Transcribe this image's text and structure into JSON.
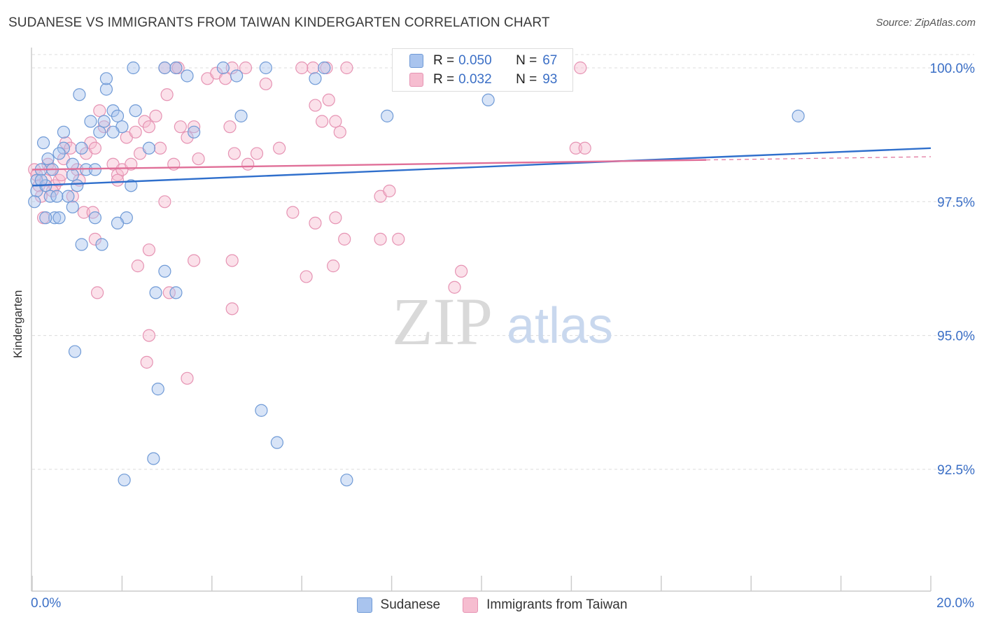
{
  "title": "SUDANESE VS IMMIGRANTS FROM TAIWAN KINDERGARTEN CORRELATION CHART",
  "source": "Source: ZipAtlas.com",
  "watermark": {
    "zip": "ZIP",
    "atlas": "atlas"
  },
  "colors": {
    "blue_fill": "#a9c4ee",
    "blue_stroke": "#6f9ad6",
    "blue_line": "#2f6fcc",
    "pink_fill": "#f6bdd0",
    "pink_stroke": "#e693b3",
    "pink_line": "#e06f98",
    "axis_text": "#3b6fc6",
    "grid": "#dcdcdc"
  },
  "legend_top": {
    "rows": [
      {
        "r_label": "R =",
        "r_value": "0.050",
        "n_label": "N =",
        "n_value": "67"
      },
      {
        "r_label": "R =",
        "r_value": "0.032",
        "n_label": "N =",
        "n_value": "93"
      }
    ]
  },
  "legend_bottom": [
    "Sudanese",
    "Immigrants from Taiwan"
  ],
  "chart_data": {
    "type": "scatter",
    "title": "SUDANESE VS IMMIGRANTS FROM TAIWAN KINDERGARTEN CORRELATION CHART",
    "xlabel": "",
    "ylabel": "Kindergarten",
    "xlim": [
      0.0,
      20.0
    ],
    "ylim": [
      90.0,
      100.5
    ],
    "x_tick_labels": [
      "0.0%",
      "20.0%"
    ],
    "y_ticks": [
      92.5,
      95.0,
      97.5,
      100.0
    ],
    "y_tick_labels": [
      "92.5%",
      "95.0%",
      "97.5%",
      "100.0%"
    ],
    "series": [
      {
        "name": "Sudanese",
        "R": 0.05,
        "N": 67,
        "trend": {
          "x": [
            0.0,
            20.0
          ],
          "y": [
            97.8,
            98.5
          ]
        },
        "points": [
          [
            0.1,
            97.9
          ],
          [
            0.1,
            97.7
          ],
          [
            0.05,
            97.5
          ],
          [
            0.2,
            98.1
          ],
          [
            0.3,
            97.8
          ],
          [
            0.35,
            98.3
          ],
          [
            0.4,
            97.6
          ],
          [
            0.5,
            97.2
          ],
          [
            0.55,
            97.6
          ],
          [
            0.7,
            98.5
          ],
          [
            0.7,
            98.8
          ],
          [
            0.8,
            97.6
          ],
          [
            0.9,
            97.4
          ],
          [
            1.0,
            97.8
          ],
          [
            1.1,
            98.5
          ],
          [
            1.2,
            98.1
          ],
          [
            0.25,
            98.6
          ],
          [
            0.6,
            98.4
          ],
          [
            0.9,
            98.0
          ],
          [
            1.4,
            98.1
          ],
          [
            1.5,
            98.8
          ],
          [
            1.6,
            99.0
          ],
          [
            1.8,
            99.2
          ],
          [
            1.9,
            99.1
          ],
          [
            2.0,
            98.9
          ],
          [
            2.2,
            97.8
          ],
          [
            2.6,
            98.5
          ],
          [
            2.3,
            99.2
          ],
          [
            1.3,
            99.0
          ],
          [
            1.05,
            99.5
          ],
          [
            1.65,
            99.6
          ],
          [
            1.65,
            99.8
          ],
          [
            2.25,
            100.0
          ],
          [
            2.95,
            100.0
          ],
          [
            3.2,
            100.0
          ],
          [
            3.45,
            99.85
          ],
          [
            4.25,
            100.0
          ],
          [
            4.55,
            99.85
          ],
          [
            5.2,
            100.0
          ],
          [
            6.3,
            99.8
          ],
          [
            6.5,
            100.0
          ],
          [
            10.15,
            99.4
          ],
          [
            4.65,
            99.1
          ],
          [
            7.9,
            99.1
          ],
          [
            17.05,
            99.1
          ],
          [
            3.6,
            98.8
          ],
          [
            1.8,
            98.8
          ],
          [
            0.9,
            98.2
          ],
          [
            1.4,
            97.2
          ],
          [
            0.6,
            97.2
          ],
          [
            0.3,
            97.2
          ],
          [
            2.1,
            97.2
          ],
          [
            1.9,
            97.1
          ],
          [
            1.1,
            96.7
          ],
          [
            1.55,
            96.7
          ],
          [
            2.95,
            96.2
          ],
          [
            2.75,
            95.8
          ],
          [
            3.2,
            95.8
          ],
          [
            0.95,
            94.7
          ],
          [
            2.8,
            94.0
          ],
          [
            5.1,
            93.6
          ],
          [
            5.45,
            93.0
          ],
          [
            2.7,
            92.7
          ],
          [
            2.05,
            92.3
          ],
          [
            7.0,
            92.3
          ],
          [
            0.2,
            97.9
          ],
          [
            0.45,
            98.1
          ]
        ]
      },
      {
        "name": "Immigrants from Taiwan",
        "R": 0.032,
        "N": 93,
        "trend": {
          "x": [
            0.0,
            15.0
          ],
          "y": [
            98.1,
            98.28
          ]
        },
        "trend_dashed": {
          "x": [
            15.0,
            20.0
          ],
          "y": [
            98.28,
            98.34
          ]
        },
        "points": [
          [
            0.05,
            98.1
          ],
          [
            0.1,
            98.0
          ],
          [
            0.15,
            97.8
          ],
          [
            0.2,
            97.6
          ],
          [
            0.25,
            97.2
          ],
          [
            0.3,
            97.9
          ],
          [
            0.35,
            98.2
          ],
          [
            0.4,
            98.1
          ],
          [
            0.5,
            97.8
          ],
          [
            0.6,
            97.9
          ],
          [
            0.7,
            98.3
          ],
          [
            0.75,
            98.6
          ],
          [
            0.85,
            98.5
          ],
          [
            0.9,
            97.6
          ],
          [
            1.0,
            98.1
          ],
          [
            1.15,
            97.3
          ],
          [
            1.2,
            98.4
          ],
          [
            1.3,
            98.6
          ],
          [
            1.4,
            98.5
          ],
          [
            1.5,
            99.2
          ],
          [
            1.6,
            98.9
          ],
          [
            1.8,
            98.2
          ],
          [
            1.9,
            98.0
          ],
          [
            2.0,
            98.1
          ],
          [
            2.1,
            98.7
          ],
          [
            2.2,
            98.2
          ],
          [
            2.3,
            98.8
          ],
          [
            2.4,
            98.4
          ],
          [
            2.5,
            99.0
          ],
          [
            2.6,
            98.9
          ],
          [
            2.75,
            99.1
          ],
          [
            2.85,
            98.5
          ],
          [
            3.0,
            99.5
          ],
          [
            3.15,
            98.2
          ],
          [
            3.3,
            98.9
          ],
          [
            3.45,
            98.7
          ],
          [
            3.6,
            98.9
          ],
          [
            3.7,
            98.3
          ],
          [
            3.9,
            99.8
          ],
          [
            4.1,
            99.9
          ],
          [
            4.3,
            99.8
          ],
          [
            4.4,
            98.9
          ],
          [
            4.5,
            98.4
          ],
          [
            4.8,
            98.2
          ],
          [
            5.0,
            98.4
          ],
          [
            5.2,
            99.7
          ],
          [
            5.5,
            98.5
          ],
          [
            2.95,
            100.0
          ],
          [
            3.2,
            100.0
          ],
          [
            3.25,
            100.0
          ],
          [
            4.45,
            100.0
          ],
          [
            4.75,
            100.0
          ],
          [
            6.25,
            100.0
          ],
          [
            6.55,
            100.0
          ],
          [
            7.0,
            100.0
          ],
          [
            12.2,
            100.0
          ],
          [
            6.0,
            100.0
          ],
          [
            6.3,
            99.3
          ],
          [
            6.45,
            99.0
          ],
          [
            6.6,
            99.4
          ],
          [
            6.75,
            99.0
          ],
          [
            6.85,
            98.8
          ],
          [
            12.1,
            98.5
          ],
          [
            12.3,
            98.5
          ],
          [
            0.45,
            97.7
          ],
          [
            0.65,
            98.0
          ],
          [
            1.05,
            97.9
          ],
          [
            1.35,
            97.3
          ],
          [
            1.9,
            97.9
          ],
          [
            2.95,
            97.5
          ],
          [
            4.45,
            96.4
          ],
          [
            3.6,
            96.4
          ],
          [
            2.6,
            96.6
          ],
          [
            1.4,
            96.8
          ],
          [
            2.35,
            96.3
          ],
          [
            1.45,
            95.8
          ],
          [
            3.05,
            95.8
          ],
          [
            4.45,
            95.5
          ],
          [
            2.6,
            95.0
          ],
          [
            2.55,
            94.5
          ],
          [
            3.45,
            94.2
          ],
          [
            5.8,
            97.3
          ],
          [
            6.3,
            97.1
          ],
          [
            6.75,
            97.2
          ],
          [
            6.95,
            96.8
          ],
          [
            7.75,
            96.8
          ],
          [
            8.15,
            96.8
          ],
          [
            7.75,
            97.6
          ],
          [
            7.95,
            97.7
          ],
          [
            6.1,
            96.1
          ],
          [
            6.7,
            96.3
          ],
          [
            9.4,
            95.9
          ],
          [
            9.55,
            96.2
          ]
        ]
      }
    ]
  }
}
